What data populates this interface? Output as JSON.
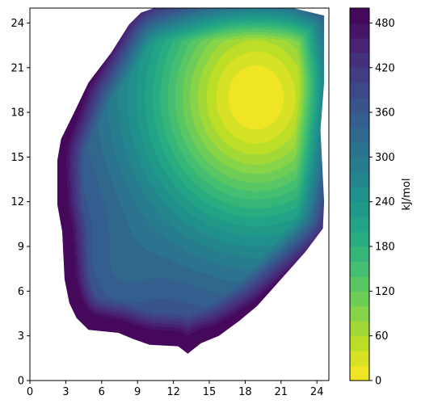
{
  "chart_data": {
    "type": "contourf",
    "title": "",
    "xlabel": "",
    "ylabel": "",
    "xlim": [
      0,
      25
    ],
    "ylim": [
      0,
      25
    ],
    "xticks": [
      0,
      3,
      6,
      9,
      12,
      15,
      18,
      21,
      24
    ],
    "yticks": [
      0,
      3,
      6,
      9,
      12,
      15,
      18,
      21,
      24
    ],
    "grid": false,
    "colormap": "viridis_r",
    "colorbar": {
      "label": "kJ/mol",
      "range": [
        0,
        500
      ],
      "ticks": [
        0,
        60,
        120,
        180,
        240,
        300,
        360,
        420,
        480
      ],
      "level_step": 20
    },
    "minimum": {
      "x": 18.9,
      "y": 19.0,
      "value": 0
    },
    "boundary": [
      [
        9.3,
        24.7
      ],
      [
        10.4,
        25
      ],
      [
        16.5,
        25
      ],
      [
        22.0,
        25
      ],
      [
        24.6,
        24.5
      ],
      [
        24.6,
        20.0
      ],
      [
        24.3,
        16.8
      ],
      [
        24.6,
        12.0
      ],
      [
        24.5,
        10.2
      ],
      [
        23.0,
        8.6
      ],
      [
        21.0,
        6.8
      ],
      [
        19.0,
        5.0
      ],
      [
        17.5,
        4.0
      ],
      [
        15.8,
        3.0
      ],
      [
        14.3,
        2.5
      ],
      [
        13.2,
        1.8
      ],
      [
        12.4,
        2.3
      ],
      [
        10.0,
        2.4
      ],
      [
        8.6,
        2.8
      ],
      [
        7.4,
        3.2
      ],
      [
        4.9,
        3.4
      ],
      [
        3.9,
        4.2
      ],
      [
        3.3,
        5.2
      ],
      [
        2.9,
        6.8
      ],
      [
        2.7,
        10.0
      ],
      [
        2.3,
        11.8
      ],
      [
        2.3,
        14.8
      ],
      [
        2.6,
        16.2
      ],
      [
        3.7,
        18.0
      ],
      [
        4.9,
        20.0
      ],
      [
        6.8,
        22.0
      ],
      [
        8.3,
        23.9
      ]
    ],
    "secondary_minimum": {
      "x": 6.8,
      "y": 6.5,
      "value": 340
    }
  }
}
